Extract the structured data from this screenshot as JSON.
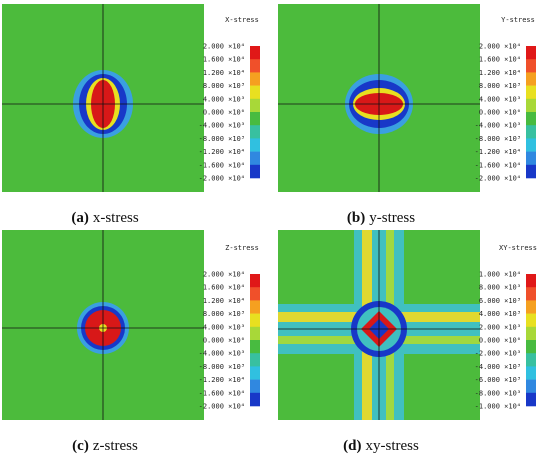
{
  "panels": [
    {
      "label": "(a)",
      "caption": "x-stress",
      "legend_title": "X-stress",
      "legend_labels": [
        "2.000 ×10⁴",
        "1.600 ×10⁴",
        "1.200 ×10⁴",
        "8.000 ×10³",
        "4.000 ×10³",
        "0.000 ×10⁰",
        "-4.000 ×10³",
        "-8.000 ×10³",
        "-1.200 ×10⁴",
        "-1.600 ×10⁴",
        "-2.000 ×10⁴"
      ]
    },
    {
      "label": "(b)",
      "caption": "y-stress",
      "legend_title": "Y-stress",
      "legend_labels": [
        "2.000 ×10⁴",
        "1.600 ×10⁴",
        "1.200 ×10⁴",
        "8.000 ×10³",
        "4.000 ×10³",
        "0.000 ×10⁰",
        "-4.000 ×10³",
        "-8.000 ×10³",
        "-1.200 ×10⁴",
        "-1.600 ×10⁴",
        "-2.000 ×10⁴"
      ]
    },
    {
      "label": "(c)",
      "caption": "z-stress",
      "legend_title": "Z-stress",
      "legend_labels": [
        "2.000 ×10⁴",
        "1.600 ×10⁴",
        "1.200 ×10⁴",
        "8.000 ×10³",
        "4.000 ×10³",
        "0.000 ×10⁰",
        "-4.000 ×10³",
        "-8.000 ×10³",
        "-1.200 ×10⁴",
        "-1.600 ×10⁴",
        "-2.000 ×10⁴"
      ]
    },
    {
      "label": "(d)",
      "caption": "xy-stress",
      "legend_title": "XY-stress",
      "legend_labels": [
        "1.000 ×10⁴",
        "8.000 ×10³",
        "6.000 ×10³",
        "4.000 ×10³",
        "2.000 ×10³",
        "0.000 ×10⁰",
        "-2.000 ×10³",
        "-4.000 ×10³",
        "-6.000 ×10³",
        "-8.000 ×10³",
        "-1.000 ×10⁴"
      ]
    }
  ]
}
